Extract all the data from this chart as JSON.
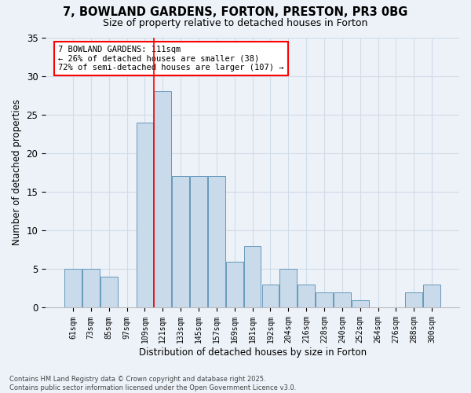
{
  "title_line1": "7, BOWLAND GARDENS, FORTON, PRESTON, PR3 0BG",
  "title_line2": "Size of property relative to detached houses in Forton",
  "xlabel": "Distribution of detached houses by size in Forton",
  "ylabel": "Number of detached properties",
  "categories": [
    "61sqm",
    "73sqm",
    "85sqm",
    "97sqm",
    "109sqm",
    "121sqm",
    "133sqm",
    "145sqm",
    "157sqm",
    "169sqm",
    "181sqm",
    "192sqm",
    "204sqm",
    "216sqm",
    "228sqm",
    "240sqm",
    "252sqm",
    "264sqm",
    "276sqm",
    "288sqm",
    "300sqm"
  ],
  "values": [
    5,
    5,
    4,
    0,
    24,
    28,
    17,
    17,
    17,
    6,
    8,
    3,
    5,
    3,
    2,
    2,
    1,
    0,
    0,
    2,
    3
  ],
  "bar_color": "#c9daea",
  "bar_edge_color": "#6699bb",
  "grid_color": "#d0dce8",
  "bg_color": "#edf2f8",
  "red_line_x": 4.5,
  "annotation_text": "7 BOWLAND GARDENS: 111sqm\n← 26% of detached houses are smaller (38)\n72% of semi-detached houses are larger (107) →",
  "footer_line1": "Contains HM Land Registry data © Crown copyright and database right 2025.",
  "footer_line2": "Contains public sector information licensed under the Open Government Licence v3.0.",
  "ylim": [
    0,
    35
  ],
  "yticks": [
    0,
    5,
    10,
    15,
    20,
    25,
    30,
    35
  ]
}
